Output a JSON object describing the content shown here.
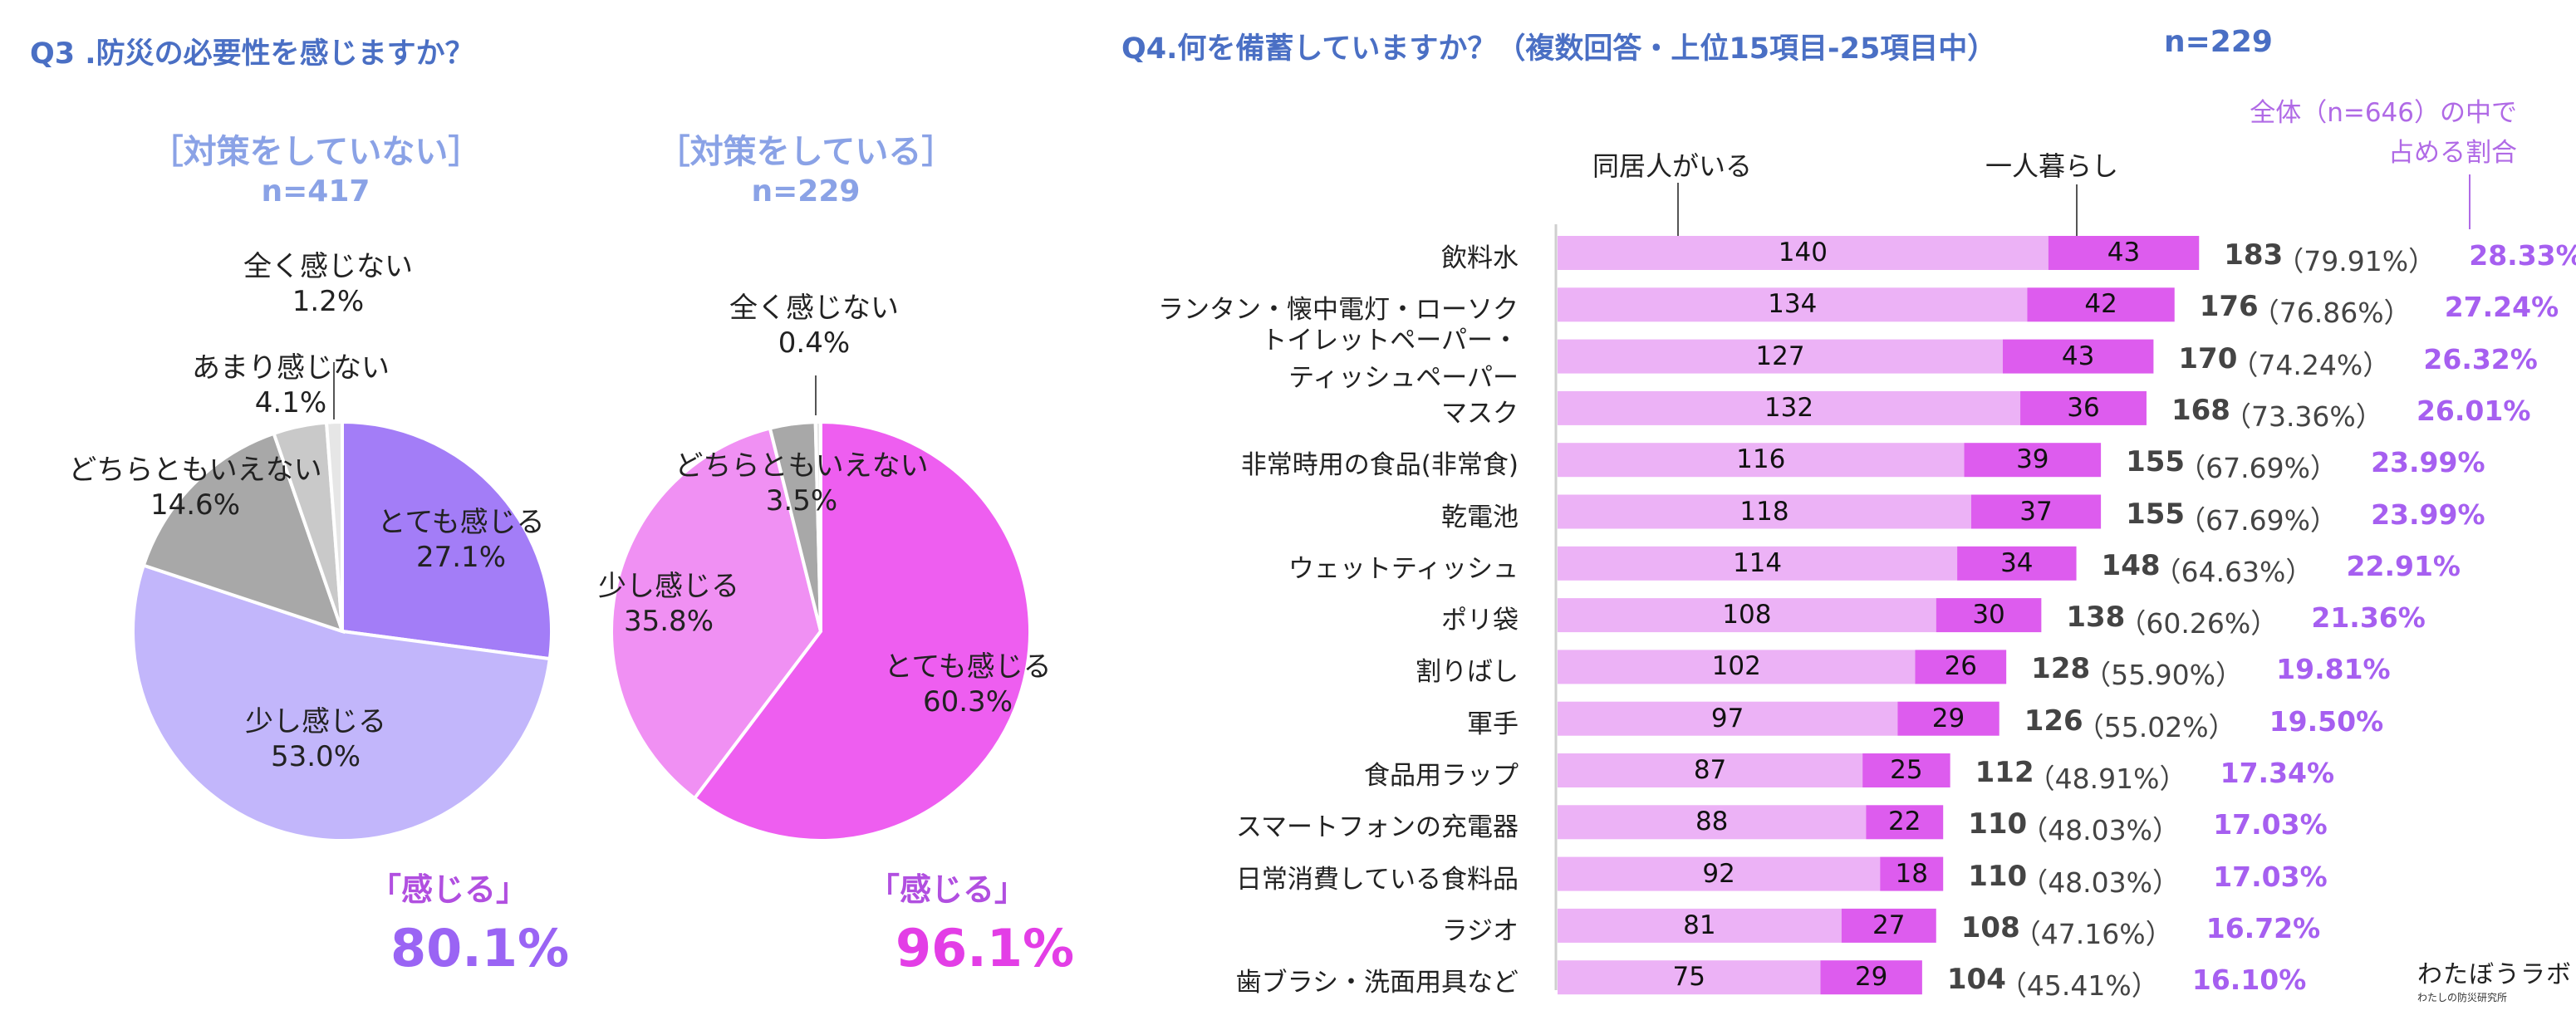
{
  "q3": {
    "title": "Q3 .防災の必要性を感じますか？",
    "groups": [
      {
        "title": "［対策をしていない］",
        "n": "n=417",
        "feel_label": "「感じる」",
        "feel_pct": "80.1%",
        "slices": [
          {
            "label": "とても感じる",
            "pct": "27.1%",
            "value": 27.1,
            "color": "#a37df7"
          },
          {
            "label": "少し感じる",
            "pct": "53.0%",
            "value": 53.0,
            "color": "#c2b6fb"
          },
          {
            "label": "どちらともいえない",
            "pct": "14.6%",
            "value": 14.6,
            "color": "#a8a8a8"
          },
          {
            "label": "あまり感じない",
            "pct": "4.1%",
            "value": 4.1,
            "color": "#c9c9c9"
          },
          {
            "label": "全く感じない",
            "pct": "1.2%",
            "value": 1.2,
            "color": "#e6e6e6"
          }
        ]
      },
      {
        "title": "［対策をしている］",
        "n": "n=229",
        "feel_label": "「感じる」",
        "feel_pct": "96.1%",
        "slices": [
          {
            "label": "とても感じる",
            "pct": "60.3%",
            "value": 60.3,
            "color": "#ee5ef0"
          },
          {
            "label": "少し感じる",
            "pct": "35.8%",
            "value": 35.8,
            "color": "#f090f3"
          },
          {
            "label": "どちらともいえない",
            "pct": "3.5%",
            "value": 3.5,
            "color": "#a8a8a8"
          },
          {
            "label": "全く感じない",
            "pct": "0.4%",
            "value": 0.4,
            "color": "#e6e6e6"
          }
        ]
      }
    ]
  },
  "q4": {
    "title": "Q4.何を備蓄していますか？（複数回答・上位15項目-25項目中）",
    "n": "n=229",
    "legend_cohabit": "同居人がいる",
    "legend_alone": "一人暮らし",
    "note_line1": "全体（n=646）の中で",
    "note_line2": "占める割合",
    "colors": {
      "cohabit": "#ecb2f6",
      "alone": "#dd5cee",
      "share": "#a65ff0"
    }
  },
  "chart_data": {
    "type": "bar",
    "orientation": "horizontal",
    "stacked": true,
    "categories": [
      "飲料水",
      "ランタン・懐中電灯・ローソク",
      "トイレットペーパー・ティッシュペーパー",
      "マスク",
      "非常時用の食品(非常食)",
      "乾電池",
      "ウェットティッシュ",
      "ポリ袋",
      "割りばし",
      "軍手",
      "食品用ラップ",
      "スマートフォンの充電器",
      "日常消費している食料品",
      "ラジオ",
      "歯ブラシ・洗面用具など"
    ],
    "category_lines": [
      [
        "飲料水"
      ],
      [
        "ランタン・懐中電灯・ローソク"
      ],
      [
        "トイレットペーパー・",
        "ティッシュペーパー"
      ],
      [
        "マスク"
      ],
      [
        "非常時用の食品(非常食)"
      ],
      [
        "乾電池"
      ],
      [
        "ウェットティッシュ"
      ],
      [
        "ポリ袋"
      ],
      [
        "割りばし"
      ],
      [
        "軍手"
      ],
      [
        "食品用ラップ"
      ],
      [
        "スマートフォンの充電器"
      ],
      [
        "日常消費している食料品"
      ],
      [
        "ラジオ"
      ],
      [
        "歯ブラシ・洗面用具など"
      ]
    ],
    "series": [
      {
        "name": "同居人がいる",
        "values": [
          140,
          134,
          127,
          132,
          116,
          118,
          114,
          108,
          102,
          97,
          87,
          88,
          92,
          81,
          75
        ]
      },
      {
        "name": "一人暮らし",
        "values": [
          43,
          42,
          43,
          36,
          39,
          37,
          34,
          30,
          26,
          29,
          25,
          22,
          18,
          27,
          29
        ]
      }
    ],
    "totals": [
      183,
      176,
      170,
      168,
      155,
      155,
      148,
      138,
      128,
      126,
      112,
      110,
      110,
      108,
      104
    ],
    "totals_pct": [
      "（79.91%）",
      "（76.86%）",
      "（74.24%）",
      "（73.36%）",
      "（67.69%）",
      "（67.69%）",
      "（64.63%）",
      "（60.26%）",
      "（55.90%）",
      "（55.02%）",
      "（48.91%）",
      "（48.03%）",
      "（48.03%）",
      "（47.16%）",
      "（45.41%）"
    ],
    "share_of_total": [
      "28.33%",
      "27.24%",
      "26.32%",
      "26.01%",
      "23.99%",
      "23.99%",
      "22.91%",
      "21.36%",
      "19.81%",
      "19.50%",
      "17.34%",
      "17.03%",
      "17.03%",
      "16.72%",
      "16.10%"
    ]
  },
  "logo": {
    "main": "わたぼうラボ",
    "sub": "わたしの防災研究所"
  }
}
